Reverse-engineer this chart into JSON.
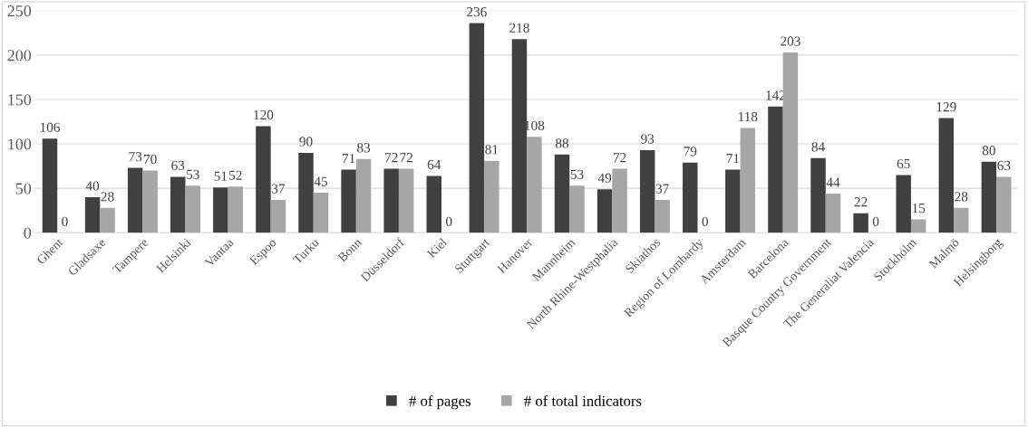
{
  "chart_data": {
    "type": "bar",
    "categories": [
      "Ghent",
      "Gladsaxe",
      "Tampere",
      "Helsinki",
      "Vantaa",
      "Espoo",
      "Turku",
      "Bonn",
      "Düsseldorf",
      "Kiel",
      "Stuttgart",
      "Hanover",
      "Mannheim",
      "North Rhine-Westphalia",
      "Skiathos",
      "Region of Lombardy",
      "Amsterdam",
      "Barcelona",
      "Basque Country Government",
      "The Generaliat Valencia",
      "Stockholm",
      "Malmö",
      "Helsingborg"
    ],
    "series": [
      {
        "name": "# of pages",
        "color": "#404040",
        "values": [
          106,
          40,
          73,
          63,
          51,
          120,
          90,
          71,
          72,
          64,
          236,
          218,
          88,
          49,
          93,
          79,
          71,
          142,
          84,
          22,
          65,
          129,
          80
        ]
      },
      {
        "name": "# of total indicators",
        "color": "#a6a6a6",
        "values": [
          0,
          28,
          70,
          53,
          52,
          37,
          45,
          83,
          72,
          0,
          81,
          108,
          53,
          72,
          37,
          0,
          118,
          203,
          44,
          0,
          15,
          28,
          63
        ]
      }
    ],
    "ylim": [
      0,
      250
    ],
    "yticks": [
      0,
      50,
      100,
      150,
      200,
      250
    ],
    "grid": "y",
    "legend": "bottom",
    "data_labels": true
  }
}
